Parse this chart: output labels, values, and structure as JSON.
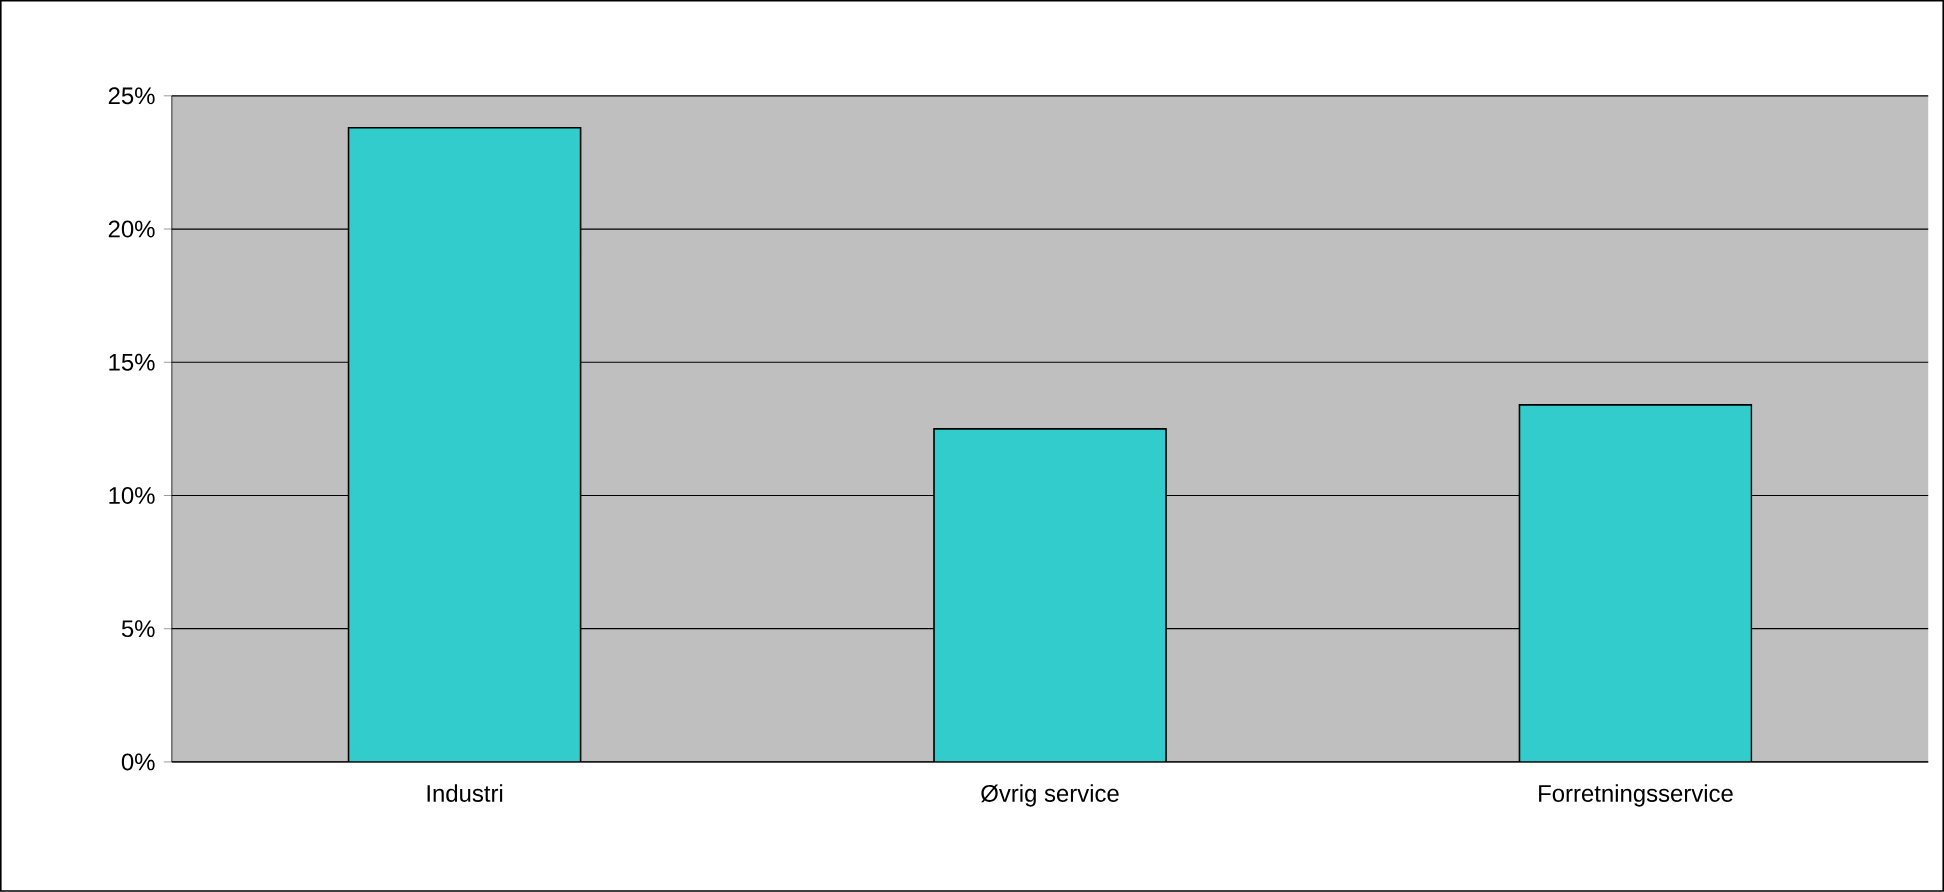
{
  "chart_data": {
    "type": "bar",
    "categories": [
      "Industri",
      "Øvrig service",
      "Forretningsservice"
    ],
    "values": [
      23.8,
      12.5,
      13.4
    ],
    "color": "#33cccc",
    "ylim": [
      0,
      25
    ],
    "yticks": [
      {
        "value": 0,
        "label": "0%"
      },
      {
        "value": 5,
        "label": "5%"
      },
      {
        "value": 10,
        "label": "10%"
      },
      {
        "value": 15,
        "label": "15%"
      },
      {
        "value": 20,
        "label": "20%"
      },
      {
        "value": 25,
        "label": "25%"
      }
    ],
    "grid": "y"
  }
}
